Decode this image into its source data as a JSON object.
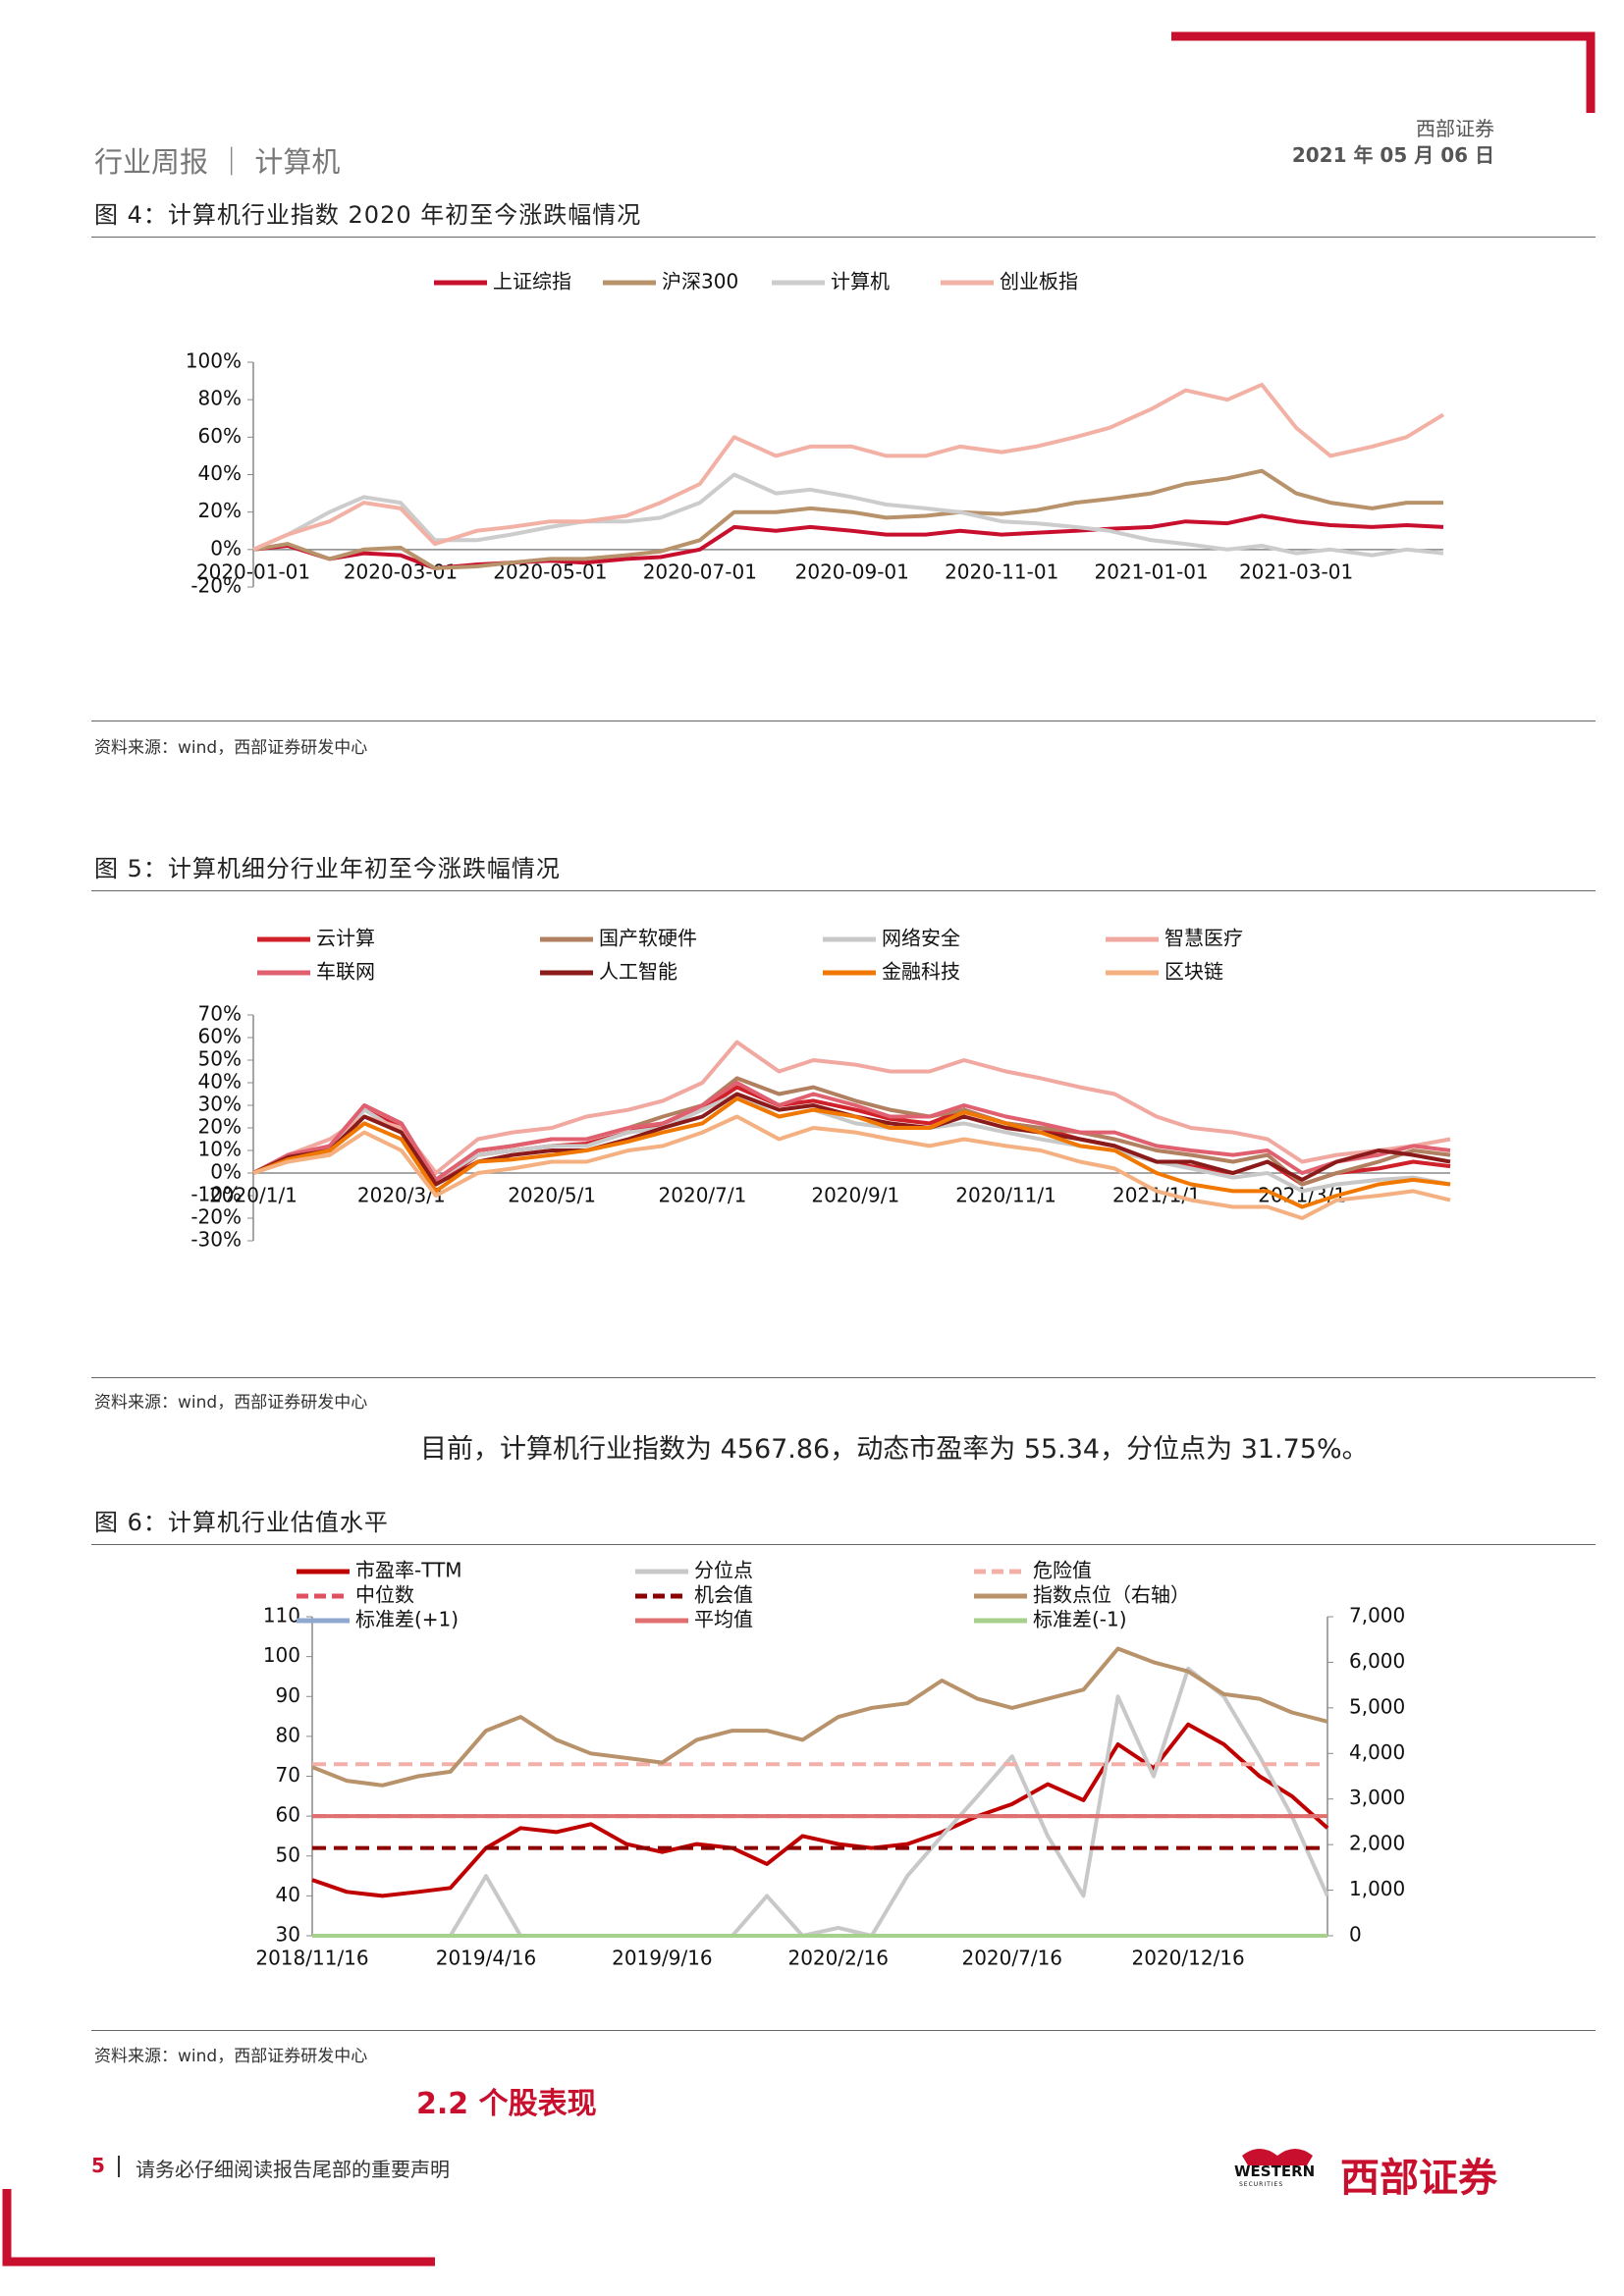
{
  "header": {
    "section": "行业周报 ｜ 计算机",
    "company": "西部证券",
    "date": "2021 年 05 月 06 日"
  },
  "figures": [
    {
      "title": "图 4：计算机行业指数 2020 年初至今涨跌幅情况",
      "source": "资料来源：wind，西部证券研发中心"
    },
    {
      "title": "图 5：计算机细分行业年初至今涨跌幅情况",
      "source": "资料来源：wind，西部证券研发中心"
    },
    {
      "title": "图 6：计算机行业估值水平",
      "source": "资料来源：wind，西部证券研发中心"
    }
  ],
  "paragraph": "目前，计算机行业指数为 4567.86，动态市盈率为 55.34，分位点为 31.75%。",
  "section_heading": "2.2 个股表现",
  "footer": {
    "page": "5",
    "notice": "请务必仔细阅读报告尾部的重要声明",
    "logo_en": "WESTERN",
    "logo_en_sub": "SECURITIES",
    "logo_cn": "西部证券"
  },
  "chart_data": [
    {
      "type": "line",
      "x": [
        "2020-01-01",
        "2020-01-15",
        "2020-02-01",
        "2020-02-15",
        "2020-03-01",
        "2020-03-15",
        "2020-04-01",
        "2020-04-15",
        "2020-05-01",
        "2020-05-15",
        "2020-06-01",
        "2020-06-15",
        "2020-07-01",
        "2020-07-15",
        "2020-08-01",
        "2020-08-15",
        "2020-09-01",
        "2020-09-15",
        "2020-10-01",
        "2020-10-15",
        "2020-11-01",
        "2020-11-15",
        "2020-12-01",
        "2020-12-15",
        "2021-01-01",
        "2021-01-15",
        "2021-02-01",
        "2021-02-15",
        "2021-03-01",
        "2021-03-15",
        "2021-04-01",
        "2021-04-15",
        "2021-04-30"
      ],
      "series": [
        {
          "name": "上证综指",
          "color": "#c8102e",
          "values": [
            0,
            2,
            -5,
            -2,
            -3,
            -10,
            -8,
            -7,
            -6,
            -7,
            -5,
            -4,
            0,
            12,
            10,
            12,
            10,
            8,
            8,
            10,
            8,
            9,
            10,
            11,
            12,
            15,
            14,
            18,
            15,
            13,
            12,
            13,
            12
          ]
        },
        {
          "name": "沪深300",
          "color": "#b8926a",
          "values": [
            0,
            3,
            -5,
            0,
            1,
            -10,
            -9,
            -7,
            -5,
            -5,
            -3,
            -1,
            5,
            20,
            20,
            22,
            20,
            17,
            18,
            20,
            19,
            21,
            25,
            27,
            30,
            35,
            38,
            42,
            30,
            25,
            22,
            25,
            25
          ]
        },
        {
          "name": "计算机",
          "color": "#cccccc",
          "values": [
            0,
            8,
            20,
            28,
            25,
            5,
            5,
            8,
            12,
            15,
            15,
            17,
            25,
            40,
            30,
            32,
            28,
            24,
            22,
            20,
            15,
            14,
            12,
            10,
            5,
            3,
            0,
            2,
            -2,
            0,
            -3,
            0,
            -2
          ]
        },
        {
          "name": "创业板指",
          "color": "#f2b1a4",
          "values": [
            0,
            8,
            15,
            25,
            22,
            3,
            10,
            12,
            15,
            15,
            18,
            25,
            35,
            60,
            50,
            55,
            55,
            50,
            50,
            55,
            52,
            55,
            60,
            65,
            75,
            85,
            80,
            88,
            65,
            50,
            55,
            60,
            72
          ]
        }
      ],
      "xticks": [
        "2020-01-01",
        "2020-03-01",
        "2020-05-01",
        "2020-07-01",
        "2020-09-01",
        "2020-11-01",
        "2021-01-01",
        "2021-03-01"
      ],
      "ylim": [
        -20,
        100
      ],
      "yticks": [
        {
          "value": -20,
          "label": "-20%"
        },
        {
          "value": 0,
          "label": "0%"
        },
        {
          "value": 20,
          "label": "20%"
        },
        {
          "value": 40,
          "label": "40%"
        },
        {
          "value": 60,
          "label": "60%"
        },
        {
          "value": 80,
          "label": "80%"
        },
        {
          "value": 100,
          "label": "100%"
        }
      ],
      "grid": false
    },
    {
      "type": "line",
      "x": [
        "2020-01-01",
        "2020-01-15",
        "2020-02-01",
        "2020-02-15",
        "2020-03-01",
        "2020-03-15",
        "2020-04-01",
        "2020-04-15",
        "2020-05-01",
        "2020-05-15",
        "2020-06-01",
        "2020-06-15",
        "2020-07-01",
        "2020-07-15",
        "2020-08-01",
        "2020-08-15",
        "2020-09-01",
        "2020-09-15",
        "2020-10-01",
        "2020-10-15",
        "2020-11-01",
        "2020-11-15",
        "2020-12-01",
        "2020-12-15",
        "2021-01-01",
        "2021-01-15",
        "2021-02-01",
        "2021-02-15",
        "2021-03-01",
        "2021-03-15",
        "2021-04-01",
        "2021-04-15",
        "2021-04-30"
      ],
      "series": [
        {
          "name": "云计算",
          "color": "#d0202a",
          "values": [
            0,
            7,
            12,
            28,
            20,
            -5,
            8,
            10,
            12,
            13,
            18,
            22,
            28,
            38,
            30,
            32,
            28,
            24,
            22,
            28,
            22,
            20,
            15,
            12,
            5,
            3,
            0,
            5,
            -5,
            0,
            2,
            5,
            3
          ]
        },
        {
          "name": "国产软硬件",
          "color": "#b08060",
          "values": [
            0,
            6,
            12,
            30,
            22,
            -3,
            10,
            12,
            15,
            15,
            20,
            25,
            30,
            42,
            35,
            38,
            32,
            28,
            25,
            28,
            22,
            20,
            18,
            15,
            10,
            8,
            5,
            8,
            -5,
            0,
            5,
            10,
            8
          ]
        },
        {
          "name": "网络安全",
          "color": "#c8c8c8",
          "values": [
            0,
            6,
            10,
            28,
            18,
            -3,
            8,
            10,
            12,
            12,
            18,
            20,
            28,
            35,
            25,
            28,
            22,
            20,
            20,
            22,
            18,
            15,
            12,
            10,
            5,
            2,
            -2,
            0,
            -8,
            -5,
            -3,
            -2,
            -5
          ]
        },
        {
          "name": "智慧医疗",
          "color": "#f0a8a0",
          "values": [
            0,
            8,
            15,
            25,
            20,
            0,
            15,
            18,
            20,
            25,
            28,
            32,
            40,
            58,
            45,
            50,
            48,
            45,
            45,
            50,
            45,
            42,
            38,
            35,
            25,
            20,
            18,
            15,
            5,
            8,
            10,
            12,
            15
          ]
        },
        {
          "name": "车联网",
          "color": "#e06070",
          "values": [
            0,
            8,
            12,
            30,
            22,
            -3,
            10,
            12,
            15,
            15,
            20,
            22,
            30,
            40,
            30,
            35,
            30,
            25,
            25,
            30,
            25,
            22,
            18,
            18,
            12,
            10,
            8,
            10,
            0,
            5,
            8,
            12,
            10
          ]
        },
        {
          "name": "人工智能",
          "color": "#8b1a1a",
          "values": [
            0,
            7,
            10,
            25,
            18,
            -5,
            5,
            8,
            10,
            10,
            15,
            20,
            25,
            35,
            28,
            30,
            25,
            22,
            20,
            25,
            20,
            18,
            15,
            12,
            5,
            5,
            0,
            5,
            -3,
            5,
            10,
            8,
            5
          ]
        },
        {
          "name": "金融科技",
          "color": "#f07800",
          "values": [
            0,
            6,
            10,
            22,
            15,
            -8,
            5,
            6,
            8,
            10,
            14,
            18,
            22,
            33,
            25,
            28,
            25,
            20,
            20,
            27,
            22,
            18,
            12,
            10,
            0,
            -5,
            -8,
            -8,
            -15,
            -10,
            -5,
            -3,
            -5
          ]
        },
        {
          "name": "区块链",
          "color": "#f4b080",
          "values": [
            0,
            5,
            8,
            18,
            10,
            -10,
            0,
            2,
            5,
            5,
            10,
            12,
            18,
            25,
            15,
            20,
            18,
            15,
            12,
            15,
            12,
            10,
            5,
            2,
            -8,
            -12,
            -15,
            -15,
            -20,
            -12,
            -10,
            -8,
            -12
          ]
        }
      ],
      "xticks": [
        "2020/1/1",
        "2020/3/1",
        "2020/5/1",
        "2020/7/1",
        "2020/9/1",
        "2020/11/1",
        "2021/1/1",
        "2021/3/1"
      ],
      "ylim": [
        -30,
        70
      ],
      "yticks": [
        {
          "value": -30,
          "label": "-30%"
        },
        {
          "value": -20,
          "label": "-20%"
        },
        {
          "value": -10,
          "label": "-10%"
        },
        {
          "value": 0,
          "label": "0%"
        },
        {
          "value": 10,
          "label": "10%"
        },
        {
          "value": 20,
          "label": "20%"
        },
        {
          "value": 30,
          "label": "30%"
        },
        {
          "value": 40,
          "label": "40%"
        },
        {
          "value": 50,
          "label": "50%"
        },
        {
          "value": 60,
          "label": "60%"
        },
        {
          "value": 70,
          "label": "70%"
        }
      ],
      "grid": false
    },
    {
      "type": "line",
      "x": [
        "2018/11/16",
        "2018/12/16",
        "2019/1/16",
        "2019/2/16",
        "2019/3/16",
        "2019/4/16",
        "2019/5/16",
        "2019/6/16",
        "2019/7/16",
        "2019/8/16",
        "2019/9/16",
        "2019/10/16",
        "2019/11/16",
        "2019/12/16",
        "2020/1/16",
        "2020/2/16",
        "2020/3/16",
        "2020/4/16",
        "2020/5/16",
        "2020/6/16",
        "2020/7/16",
        "2020/8/16",
        "2020/9/16",
        "2020/10/16",
        "2020/11/16",
        "2020/12/16",
        "2021/1/16",
        "2021/2/16",
        "2021/3/16",
        "2021/4/16"
      ],
      "series": [
        {
          "name": "市盈率-TTM",
          "color": "#c00000",
          "values": [
            44,
            41,
            40,
            41,
            42,
            52,
            57,
            56,
            58,
            53,
            51,
            53,
            52,
            48,
            55,
            53,
            52,
            53,
            56,
            60,
            63,
            68,
            64,
            78,
            72,
            83,
            78,
            70,
            65,
            57
          ]
        },
        {
          "name": "分位点",
          "color": "#c8c8c8",
          "values": [
            30,
            30,
            30,
            30,
            30,
            45,
            30,
            30,
            30,
            30,
            30,
            30,
            30,
            40,
            30,
            32,
            30,
            45,
            55,
            65,
            75,
            55,
            40,
            90,
            70,
            97,
            90,
            75,
            60,
            40
          ]
        },
        {
          "name": "危险值",
          "color": "#f4b0a8",
          "dash": true,
          "values": [
            73,
            73,
            73,
            73,
            73,
            73,
            73,
            73,
            73,
            73,
            73,
            73,
            73,
            73,
            73,
            73,
            73,
            73,
            73,
            73,
            73,
            73,
            73,
            73,
            73,
            73,
            73,
            73,
            73,
            73
          ]
        },
        {
          "name": "中位数",
          "color": "#e05060",
          "dash": true,
          "values": [
            60,
            60,
            60,
            60,
            60,
            60,
            60,
            60,
            60,
            60,
            60,
            60,
            60,
            60,
            60,
            60,
            60,
            60,
            60,
            60,
            60,
            60,
            60,
            60,
            60,
            60,
            60,
            60,
            60,
            60
          ]
        },
        {
          "name": "机会值",
          "color": "#8b0000",
          "dash": true,
          "values": [
            52,
            52,
            52,
            52,
            52,
            52,
            52,
            52,
            52,
            52,
            52,
            52,
            52,
            52,
            52,
            52,
            52,
            52,
            52,
            52,
            52,
            52,
            52,
            52,
            52,
            52,
            52,
            52,
            52,
            52
          ]
        },
        {
          "name": "指数点位（右轴）",
          "color": "#b8926a",
          "axis": "y2",
          "values": [
            3700,
            3400,
            3300,
            3500,
            3600,
            4500,
            4800,
            4300,
            4000,
            3900,
            3800,
            4300,
            4500,
            4500,
            4300,
            4800,
            5000,
            5100,
            5600,
            5200,
            5000,
            5200,
            5400,
            6300,
            6000,
            5800,
            5300,
            5200,
            4900,
            4700
          ]
        },
        {
          "name": "标准差(+1)",
          "color": "#8fa8d0",
          "values": [
            30,
            30,
            30,
            30,
            30,
            30,
            30,
            30,
            30,
            30,
            30,
            30,
            30,
            30,
            30,
            30,
            30,
            30,
            30,
            30,
            30,
            30,
            30,
            30,
            30,
            30,
            30,
            30,
            30,
            30
          ]
        },
        {
          "name": "平均值",
          "color": "#e07070",
          "values": [
            60,
            60,
            60,
            60,
            60,
            60,
            60,
            60,
            60,
            60,
            60,
            60,
            60,
            60,
            60,
            60,
            60,
            60,
            60,
            60,
            60,
            60,
            60,
            60,
            60,
            60,
            60,
            60,
            60,
            60
          ]
        },
        {
          "name": "标准差(-1)",
          "color": "#a8d08d",
          "values": [
            30,
            30,
            30,
            30,
            30,
            30,
            30,
            30,
            30,
            30,
            30,
            30,
            30,
            30,
            30,
            30,
            30,
            30,
            30,
            30,
            30,
            30,
            30,
            30,
            30,
            30,
            30,
            30,
            30,
            30
          ]
        }
      ],
      "xticks": [
        "2018/11/16",
        "2019/4/16",
        "2019/9/16",
        "2020/2/16",
        "2020/7/16",
        "2020/12/16"
      ],
      "ylim": [
        30,
        110
      ],
      "yticks": [
        30,
        40,
        50,
        60,
        70,
        80,
        90,
        100,
        110
      ],
      "y2lim": [
        0,
        7000
      ],
      "y2ticks": [
        0,
        {
          "value": 1000,
          "label": "1,000"
        },
        {
          "value": 2000,
          "label": "2,000"
        },
        {
          "value": 3000,
          "label": "3,000"
        },
        {
          "value": 4000,
          "label": "4,000"
        },
        {
          "value": 5000,
          "label": "5,000"
        },
        {
          "value": 6000,
          "label": "6,000"
        },
        {
          "value": 7000,
          "label": "7,000"
        }
      ],
      "grid": false
    }
  ]
}
